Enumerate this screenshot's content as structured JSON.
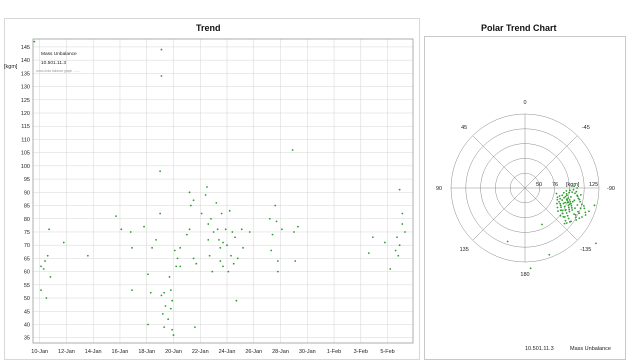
{
  "colors": {
    "point": "#2a9d2a",
    "grid": "#d4d4d4",
    "frame": "#9a9a9a",
    "text": "#222222",
    "border": "#c8c8c8"
  },
  "trend": {
    "title": "Trend",
    "unit_label": "[kgm]",
    "legend_series": "Mass Unbalance",
    "legend_point": "10.501.11.3",
    "legend_note": "cross-links balance graph ........",
    "y_ticks": [
      145,
      140,
      135,
      130,
      125,
      120,
      115,
      110,
      105,
      100,
      95,
      90,
      85,
      80,
      75,
      70,
      65,
      60,
      55,
      50,
      45,
      40,
      35
    ],
    "x_ticks": [
      "10-Jan",
      "12-Jan",
      "14-Jan",
      "16-Jan",
      "18-Jan",
      "20-Jan",
      "22-Jan",
      "24-Jan",
      "26-Jan",
      "28-Jan",
      "30-Jan",
      "1-Feb",
      "3-Feb",
      "5-Feb"
    ]
  },
  "polar": {
    "title": "Polar Trend Chart",
    "angle_labels": [
      "0",
      "45",
      "-45",
      "90",
      "-90",
      "135",
      "-135",
      "180"
    ],
    "radial_labels": [
      "50",
      "76"
    ],
    "unit_label": "[kgm]",
    "outer_label": "125",
    "footer_point": "10.501.11.3",
    "footer_series": "Mass Unbalance"
  },
  "chart_data": [
    {
      "type": "scatter",
      "title": "Trend",
      "xlabel": "",
      "ylabel": "[kgm]",
      "ylim": [
        33,
        148
      ],
      "xlim": [
        0,
        28.4
      ],
      "x_tick_labels": [
        "10-Jan",
        "12-Jan",
        "14-Jan",
        "16-Jan",
        "18-Jan",
        "20-Jan",
        "22-Jan",
        "24-Jan",
        "26-Jan",
        "28-Jan",
        "30-Jan",
        "1-Feb",
        "3-Feb",
        "5-Feb"
      ],
      "grid": true,
      "points": [
        [
          0.1,
          147
        ],
        [
          0.6,
          62
        ],
        [
          0.6,
          53
        ],
        [
          0.8,
          61
        ],
        [
          0.9,
          64
        ],
        [
          1.0,
          50
        ],
        [
          1.1,
          66
        ],
        [
          1.2,
          76
        ],
        [
          1.3,
          58
        ],
        [
          2.3,
          71
        ],
        [
          4.1,
          66
        ],
        [
          6.2,
          81
        ],
        [
          6.6,
          76
        ],
        [
          7.3,
          75
        ],
        [
          7.4,
          53
        ],
        [
          7.4,
          69
        ],
        [
          8.3,
          77
        ],
        [
          8.6,
          59
        ],
        [
          8.8,
          52
        ],
        [
          8.6,
          40
        ],
        [
          8.9,
          69
        ],
        [
          9.2,
          72
        ],
        [
          9.5,
          82
        ],
        [
          9.5,
          98
        ],
        [
          9.6,
          134
        ],
        [
          9.6,
          144
        ],
        [
          9.6,
          51
        ],
        [
          9.7,
          44
        ],
        [
          9.8,
          39
        ],
        [
          9.8,
          52
        ],
        [
          9.9,
          47
        ],
        [
          10.1,
          42
        ],
        [
          10.2,
          58
        ],
        [
          10.3,
          53
        ],
        [
          10.3,
          46
        ],
        [
          10.4,
          49
        ],
        [
          10.4,
          38
        ],
        [
          10.5,
          36
        ],
        [
          10.6,
          68
        ],
        [
          10.7,
          62
        ],
        [
          10.8,
          65
        ],
        [
          11.0,
          69
        ],
        [
          11.0,
          62
        ],
        [
          11.5,
          74
        ],
        [
          11.7,
          90
        ],
        [
          11.7,
          76
        ],
        [
          11.8,
          85
        ],
        [
          12.0,
          87
        ],
        [
          12.0,
          65
        ],
        [
          12.1,
          39
        ],
        [
          12.2,
          63
        ],
        [
          12.6,
          82
        ],
        [
          12.9,
          89
        ],
        [
          13.0,
          92
        ],
        [
          13.1,
          72
        ],
        [
          13.1,
          78
        ],
        [
          13.2,
          66
        ],
        [
          13.3,
          80
        ],
        [
          13.4,
          60
        ],
        [
          13.5,
          75
        ],
        [
          13.7,
          86
        ],
        [
          13.8,
          76
        ],
        [
          13.9,
          72
        ],
        [
          14.0,
          69
        ],
        [
          14.0,
          64
        ],
        [
          14.1,
          82
        ],
        [
          14.2,
          71
        ],
        [
          14.2,
          62
        ],
        [
          14.4,
          76
        ],
        [
          14.5,
          70
        ],
        [
          14.6,
          60
        ],
        [
          14.7,
          83
        ],
        [
          14.8,
          66
        ],
        [
          14.9,
          75
        ],
        [
          15.0,
          63
        ],
        [
          15.1,
          73
        ],
        [
          15.2,
          49
        ],
        [
          15.3,
          65
        ],
        [
          15.6,
          76
        ],
        [
          15.7,
          69
        ],
        [
          16.2,
          75
        ],
        [
          17.7,
          80
        ],
        [
          17.8,
          68
        ],
        [
          17.9,
          74
        ],
        [
          18.1,
          85
        ],
        [
          18.2,
          79
        ],
        [
          18.3,
          64
        ],
        [
          18.3,
          60
        ],
        [
          18.6,
          76
        ],
        [
          19.4,
          106
        ],
        [
          19.5,
          75
        ],
        [
          19.6,
          64
        ],
        [
          19.8,
          77
        ],
        [
          25.1,
          67
        ],
        [
          25.4,
          73
        ],
        [
          26.3,
          71
        ],
        [
          26.7,
          61
        ],
        [
          27.1,
          68
        ],
        [
          27.2,
          73
        ],
        [
          27.3,
          66
        ],
        [
          27.4,
          70
        ],
        [
          27.4,
          91
        ],
        [
          27.6,
          78
        ],
        [
          27.6,
          82
        ],
        [
          27.8,
          75
        ]
      ]
    },
    {
      "type": "scatter",
      "title": "Polar Trend Chart",
      "subtype": "polar",
      "unit": "[kgm]",
      "angle_labels": [
        "0",
        "45",
        "-45",
        "90",
        "-90",
        "135",
        "-135",
        "180"
      ],
      "radial_ticks": [
        50,
        76,
        125
      ],
      "points_r_angle": [
        [
          72,
          -100
        ],
        [
          75,
          -103
        ],
        [
          78,
          -105
        ],
        [
          80,
          -107
        ],
        [
          82,
          -109
        ],
        [
          84,
          -111
        ],
        [
          86,
          -113
        ],
        [
          88,
          -115
        ],
        [
          74,
          -106
        ],
        [
          76,
          -109
        ],
        [
          79,
          -112
        ],
        [
          81,
          -114
        ],
        [
          83,
          -116
        ],
        [
          85,
          -118
        ],
        [
          70,
          -102
        ],
        [
          73,
          -105
        ],
        [
          77,
          -108
        ],
        [
          80,
          -110
        ],
        [
          68,
          -104
        ],
        [
          66,
          -108
        ],
        [
          70,
          -112
        ],
        [
          74,
          -115
        ],
        [
          78,
          -118
        ],
        [
          82,
          -121
        ],
        [
          86,
          -123
        ],
        [
          90,
          -125
        ],
        [
          94,
          -118
        ],
        [
          98,
          -114
        ],
        [
          100,
          -110
        ],
        [
          104,
          -107
        ],
        [
          96,
          -104
        ],
        [
          92,
          -101
        ],
        [
          89,
          -98
        ],
        [
          85,
          -96
        ],
        [
          80,
          -95
        ],
        [
          75,
          -96
        ],
        [
          71,
          -98
        ],
        [
          64,
          -101
        ],
        [
          62,
          -107
        ],
        [
          65,
          -114
        ],
        [
          69,
          -118
        ],
        [
          73,
          -121
        ],
        [
          77,
          -124
        ],
        [
          81,
          -127
        ],
        [
          88,
          -129
        ],
        [
          92,
          -130
        ],
        [
          96,
          -126
        ],
        [
          102,
          -122
        ],
        [
          108,
          -117
        ],
        [
          110,
          -112
        ],
        [
          106,
          -109
        ],
        [
          100,
          -106
        ],
        [
          94,
          -102
        ],
        [
          90,
          -99
        ],
        [
          87,
          -94
        ],
        [
          82,
          -92
        ],
        [
          76,
          -93
        ],
        [
          70,
          -94
        ],
        [
          66,
          -97
        ],
        [
          60,
          -103
        ],
        [
          58,
          -110
        ],
        [
          60,
          -116
        ],
        [
          64,
          -121
        ],
        [
          68,
          -125
        ],
        [
          78,
          -119
        ],
        [
          84,
          -106
        ],
        [
          91,
          -112
        ],
        [
          97,
          -118
        ],
        [
          101,
          -115
        ],
        [
          83,
          -126
        ],
        [
          76,
          -128
        ],
        [
          71,
          -122
        ],
        [
          67,
          -116
        ],
        [
          72,
          -110
        ],
        [
          79,
          -101
        ],
        [
          86,
          -104
        ],
        [
          93,
          -108
        ],
        [
          99,
          -120
        ],
        [
          105,
          -119
        ],
        [
          112,
          -114
        ],
        [
          115,
          -110
        ],
        [
          95,
          -127
        ],
        [
          90,
          -132
        ],
        [
          62,
          -112
        ],
        [
          57,
          -106
        ],
        [
          54,
          -100
        ],
        [
          95,
          -97
        ],
        [
          88,
          -90
        ],
        [
          83,
          -88
        ],
        [
          121,
          -104
        ],
        [
          152,
          -128
        ],
        [
          120,
          -160
        ],
        [
          68,
          -155
        ],
        [
          95,
          162
        ],
        [
          136,
          -176
        ]
      ]
    }
  ]
}
